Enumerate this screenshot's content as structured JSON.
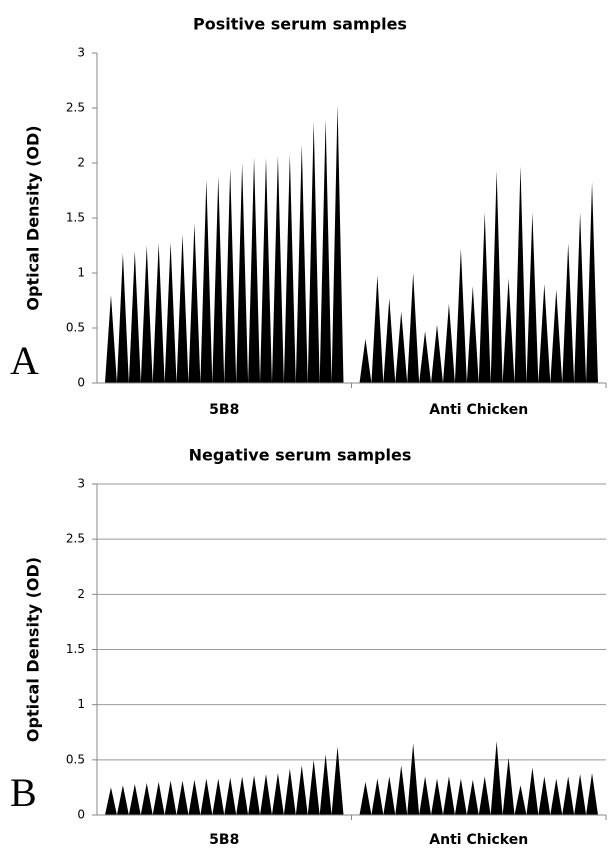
{
  "chart_data": [
    {
      "type": "spike",
      "title": "Positive serum samples",
      "y_label": "Optical Density (OD)",
      "panel_label": "A",
      "categories": [
        "5B8",
        "Anti Chicken"
      ],
      "groups": [
        [
          0.8,
          1.18,
          1.2,
          1.25,
          1.27,
          1.28,
          1.35,
          1.45,
          1.85,
          1.88,
          1.95,
          2.0,
          2.05,
          2.05,
          2.07,
          2.08,
          2.17,
          2.38,
          2.4,
          2.53
        ],
        [
          0.4,
          0.98,
          0.77,
          0.65,
          1.0,
          0.47,
          0.53,
          0.72,
          1.22,
          0.88,
          1.55,
          1.93,
          0.95,
          1.97,
          1.55,
          0.9,
          0.85,
          1.27,
          1.55,
          1.83
        ]
      ],
      "color": "#000000",
      "ylim": [
        0,
        3
      ],
      "yticks": [
        0,
        0.5,
        1,
        1.5,
        2,
        2.5,
        3
      ],
      "grid": false
    },
    {
      "type": "spike",
      "title": "Negative serum samples",
      "y_label": "Optical Density (OD)",
      "panel_label": "B",
      "categories": [
        "5B8",
        "Anti Chicken"
      ],
      "groups": [
        [
          0.25,
          0.27,
          0.28,
          0.29,
          0.3,
          0.31,
          0.31,
          0.32,
          0.33,
          0.33,
          0.34,
          0.35,
          0.36,
          0.37,
          0.38,
          0.42,
          0.45,
          0.5,
          0.55,
          0.62
        ],
        [
          0.3,
          0.33,
          0.35,
          0.45,
          0.65,
          0.35,
          0.33,
          0.35,
          0.33,
          0.32,
          0.35,
          0.67,
          0.52,
          0.27,
          0.43,
          0.35,
          0.33,
          0.35,
          0.37,
          0.38
        ]
      ],
      "color": "#000000",
      "ylim": [
        0,
        3
      ],
      "yticks": [
        0,
        0.5,
        1,
        1.5,
        2,
        2.5,
        3
      ],
      "grid": true
    }
  ]
}
